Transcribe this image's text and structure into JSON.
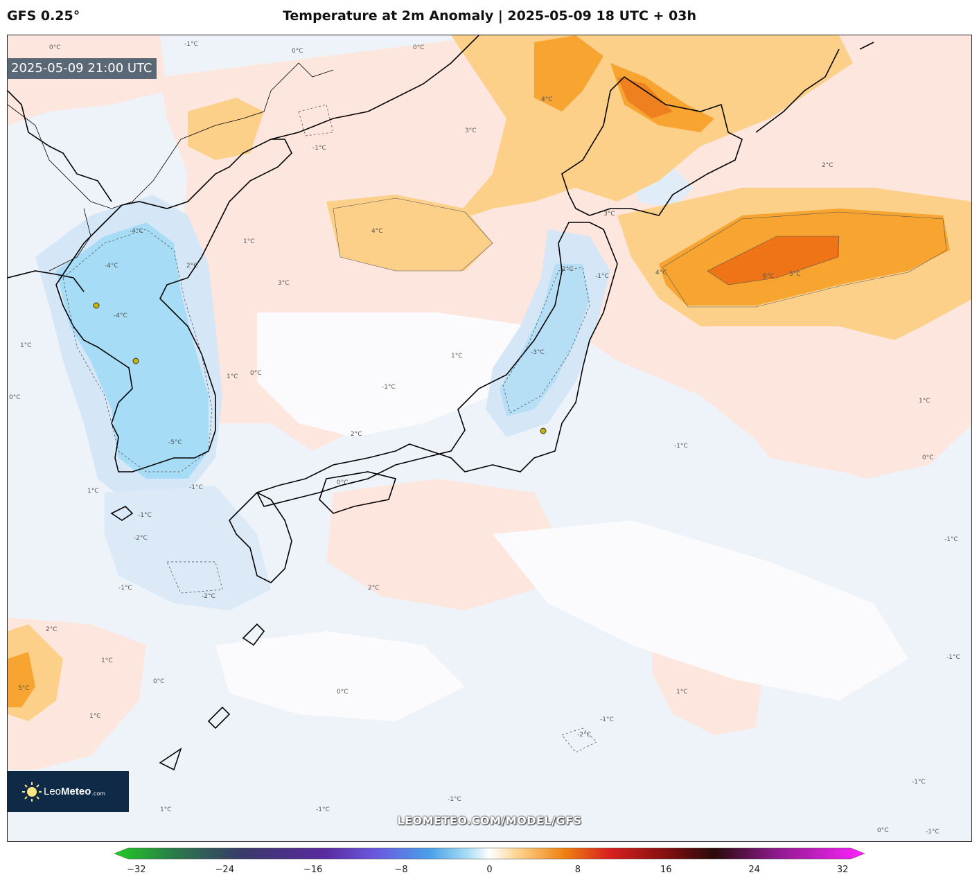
{
  "header": {
    "model_label": "GFS 0.25°",
    "title": "Temperature at 2m Anomaly | 2025-05-09 18 UTC + 03h"
  },
  "valid_time": "2025-05-09 21:00 UTC",
  "logo": {
    "text_light": "Leo",
    "text_bold": "Meteo",
    "suffix": ".com"
  },
  "watermark": "LEOMETEO.COM/MODEL/GFS",
  "colorbar": {
    "ticks": [
      "−32",
      "−24",
      "−16",
      "−8",
      "0",
      "8",
      "16",
      "24",
      "32"
    ],
    "tick_values": [
      -32,
      -24,
      -16,
      -8,
      0,
      8,
      16,
      24,
      32
    ],
    "min": -34,
    "max": 34
  },
  "contour_labels": {
    "l01": "0°C",
    "l02": "-1°C",
    "l03": "0°C",
    "l04": "0°C",
    "l05": "4°C",
    "l06": "3°C",
    "l07": "-1°C",
    "l08": "2°C",
    "l09": "-4°C",
    "l10": "4°C",
    "l11": "2°C",
    "l12": "1°C",
    "l13": "4°C",
    "l14": "3°C",
    "l15": "-1°C",
    "l16": "2°C",
    "l17": "3°C",
    "l18": "6°C",
    "l19": "5°C",
    "l20": "-4°C",
    "l21": "-4°C",
    "l22": "-5°C",
    "l23": "-1°C",
    "l24": "-2°C",
    "l25": "1°C",
    "l26": "1°C",
    "l27": "0°C",
    "l28": "1°C",
    "l29": "0°C",
    "l30": "-3°C",
    "l31": "-1°C",
    "l32": "2°C",
    "l33": "0°C",
    "l34": "1°C",
    "l35": "-1°C",
    "l36": "2°C",
    "l37": "-1°C",
    "l38": "-2°C",
    "l39": "1°C",
    "l40": "2°C",
    "l41": "1°C",
    "l42": "0°C",
    "l43": "0°C",
    "l44": "-1°C",
    "l45": "1°C",
    "l46": "-2°C",
    "l47": "1°C",
    "l48": "-1°C",
    "l49": "-1°C",
    "l50": "1°C",
    "l51": "-1°C",
    "l52": "0°C",
    "l53": "5°C",
    "l54": "-1°C",
    "l55": "-1°C",
    "l56": "-1°C",
    "l57": "0°C",
    "l58": "-1°C"
  },
  "colors": {
    "negative_light": "#e6eef8",
    "negative_mid": "#c6def5",
    "negative_strong": "#a2dcf5",
    "positive_light": "#fde3da",
    "positive_mid": "#fcc97a",
    "positive_strong": "#f6a429",
    "positive_peak": "#ef7414"
  }
}
